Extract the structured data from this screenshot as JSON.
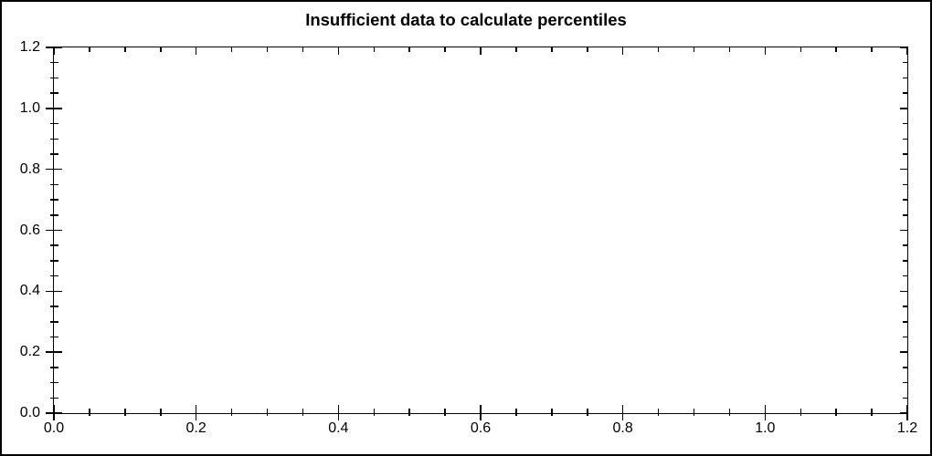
{
  "window": {
    "background": "#ffffff",
    "border_color": "#000000"
  },
  "chart_data": {
    "type": "line",
    "title": "Insufficient data to calculate percentiles",
    "series": [],
    "xlabel": "",
    "ylabel": "",
    "xlim": [
      0.0,
      1.2
    ],
    "ylim": [
      0.0,
      1.2
    ],
    "x_major_ticks": [
      0.0,
      0.2,
      0.4,
      0.6,
      0.8,
      1.0,
      1.2
    ],
    "x_tick_labels": [
      "0.0",
      "0.2",
      "0.4",
      "0.6",
      "0.8",
      "1.0",
      "1.2"
    ],
    "y_major_ticks": [
      0.0,
      0.2,
      0.4,
      0.6,
      0.8,
      1.0,
      1.2
    ],
    "y_tick_labels": [
      "0.0",
      "0.2",
      "0.4",
      "0.6",
      "0.8",
      "1.0",
      "1.2"
    ],
    "minor_tick_step": 0.05,
    "grid": false,
    "legend": false,
    "axis_color": "#000000",
    "title_color": "#000000",
    "plot_background": "#ffffff"
  }
}
